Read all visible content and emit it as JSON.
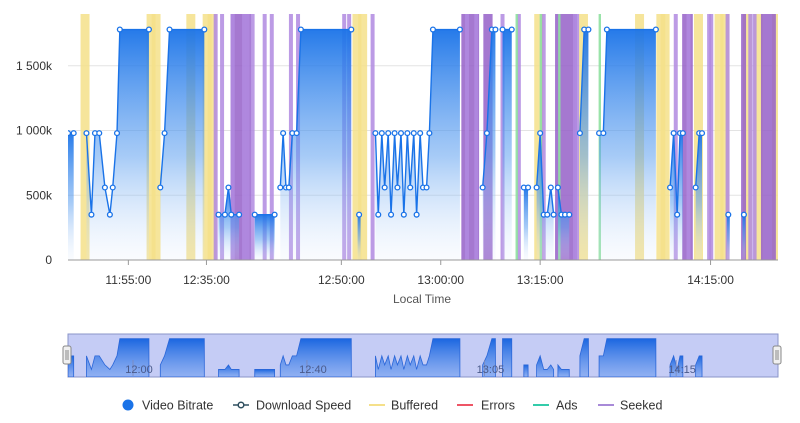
{
  "chart_data": {
    "type": "line",
    "xlabel": "Local Time",
    "ylabel": "",
    "x_ticks": [
      "11:55:00",
      "12:35:00",
      "12:50:00",
      "13:00:00",
      "13:15:00",
      "14:15:00"
    ],
    "y_ticks": [
      "0",
      "500k",
      "1 000k",
      "1 500k"
    ],
    "y_tick_values": [
      0,
      500,
      1000,
      1500
    ],
    "ylim": [
      0,
      1900
    ],
    "y_unit": "k",
    "grid": true,
    "legend_position": "bottom",
    "legend": [
      {
        "name": "Video Bitrate",
        "symbol": "dot",
        "color": "#1a73e8"
      },
      {
        "name": "Download Speed",
        "symbol": "line-dot",
        "color": "#2f4f5f"
      },
      {
        "name": "Buffered",
        "symbol": "line",
        "color": "#f5e08a"
      },
      {
        "name": "Errors",
        "symbol": "line",
        "color": "#ee5566"
      },
      {
        "name": "Ads",
        "symbol": "line",
        "color": "#33ccaa"
      },
      {
        "name": "Seeked",
        "symbol": "line",
        "color": "#a88ad8"
      }
    ],
    "series": [
      {
        "name": "Video Bitrate",
        "segments": [
          [
            [
              0.0,
              980
            ],
            [
              0.8,
              980
            ]
          ],
          [
            [
              2.6,
              980
            ],
            [
              3.3,
              350
            ],
            [
              3.8,
              980
            ],
            [
              4.4,
              980
            ],
            [
              5.2,
              560
            ],
            [
              5.9,
              350
            ],
            [
              6.3,
              560
            ],
            [
              6.9,
              980
            ],
            [
              7.3,
              1780
            ],
            [
              11.4,
              1780
            ]
          ],
          [
            [
              13.0,
              560
            ],
            [
              13.6,
              980
            ],
            [
              14.3,
              1780
            ],
            [
              19.2,
              1780
            ]
          ],
          [
            [
              21.2,
              350
            ],
            [
              22.1,
              350
            ],
            [
              22.6,
              560
            ],
            [
              23.0,
              350
            ],
            [
              24.1,
              350
            ]
          ],
          [
            [
              26.3,
              350
            ],
            [
              29.1,
              350
            ]
          ],
          [
            [
              29.9,
              560
            ],
            [
              30.3,
              980
            ],
            [
              30.7,
              560
            ],
            [
              31.1,
              560
            ],
            [
              31.6,
              980
            ],
            [
              32.2,
              980
            ],
            [
              32.8,
              1780
            ],
            [
              39.9,
              1780
            ]
          ],
          [
            [
              41.0,
              350
            ]
          ],
          [
            [
              43.3,
              980
            ],
            [
              43.7,
              350
            ],
            [
              44.2,
              980
            ],
            [
              44.6,
              560
            ],
            [
              45.1,
              980
            ],
            [
              45.5,
              350
            ],
            [
              46.0,
              980
            ],
            [
              46.4,
              560
            ],
            [
              46.9,
              980
            ],
            [
              47.3,
              350
            ],
            [
              47.8,
              980
            ],
            [
              48.2,
              560
            ],
            [
              48.7,
              980
            ],
            [
              49.1,
              350
            ],
            [
              49.6,
              980
            ],
            [
              50.0,
              560
            ],
            [
              50.5,
              560
            ],
            [
              50.9,
              980
            ],
            [
              51.4,
              1780
            ],
            [
              55.2,
              1780
            ]
          ],
          [
            [
              58.4,
              560
            ],
            [
              59.0,
              980
            ],
            [
              59.7,
              1780
            ],
            [
              60.2,
              1780
            ]
          ],
          [
            [
              61.2,
              1780
            ],
            [
              62.5,
              1780
            ]
          ],
          [
            [
              64.2,
              560
            ],
            [
              64.8,
              560
            ]
          ],
          [
            [
              66.0,
              560
            ],
            [
              66.5,
              980
            ],
            [
              67.0,
              350
            ],
            [
              67.5,
              350
            ],
            [
              68.0,
              560
            ],
            [
              68.4,
              350
            ]
          ],
          [
            [
              69.0,
              560
            ],
            [
              69.5,
              350
            ],
            [
              70.0,
              350
            ],
            [
              70.6,
              350
            ]
          ],
          [
            [
              72.1,
              980
            ],
            [
              72.7,
              1780
            ],
            [
              73.3,
              1780
            ]
          ],
          [
            [
              74.8,
              980
            ],
            [
              75.4,
              980
            ],
            [
              75.9,
              1780
            ],
            [
              82.8,
              1780
            ]
          ],
          [
            [
              84.8,
              560
            ],
            [
              85.3,
              980
            ],
            [
              85.8,
              350
            ],
            [
              86.2,
              980
            ],
            [
              86.6,
              980
            ]
          ],
          [
            [
              88.4,
              560
            ],
            [
              88.9,
              980
            ],
            [
              89.3,
              980
            ]
          ],
          [
            [
              93.0,
              350
            ]
          ],
          [
            [
              95.2,
              350
            ]
          ]
        ]
      }
    ],
    "buffered_x": [
      2.4,
      11.7,
      12.4,
      17.3,
      19.6,
      20.3,
      40.7,
      41.5,
      66.3,
      72.6,
      80.5,
      83.5,
      84.1,
      88.8,
      91.7,
      92.5,
      95.7,
      97.2,
      99.8
    ],
    "seeked_x": [
      20.8,
      21.7,
      23.2,
      24.8,
      25.3,
      26.0,
      27.7,
      28.7,
      31.4,
      32.4,
      38.9,
      39.6,
      42.9,
      56.2,
      57.5,
      61.2,
      63.5,
      67.0,
      71.7,
      71.4,
      85.6,
      87.4,
      90.3,
      90.6,
      92.9,
      96.1,
      96.7
    ],
    "seeked_bands": [
      [
        22.9,
        25.8
      ],
      [
        55.4,
        57.9
      ],
      [
        58.5,
        59.8
      ],
      [
        68.6,
        71.7
      ],
      [
        86.5,
        88.0
      ],
      [
        94.8,
        95.5
      ],
      [
        97.6,
        99.7
      ]
    ],
    "ads_x": [
      63.2,
      66.6,
      69.2,
      74.9
    ],
    "navigator_labels": [
      "12:00",
      "12:40",
      "13:05",
      "14:15"
    ]
  }
}
